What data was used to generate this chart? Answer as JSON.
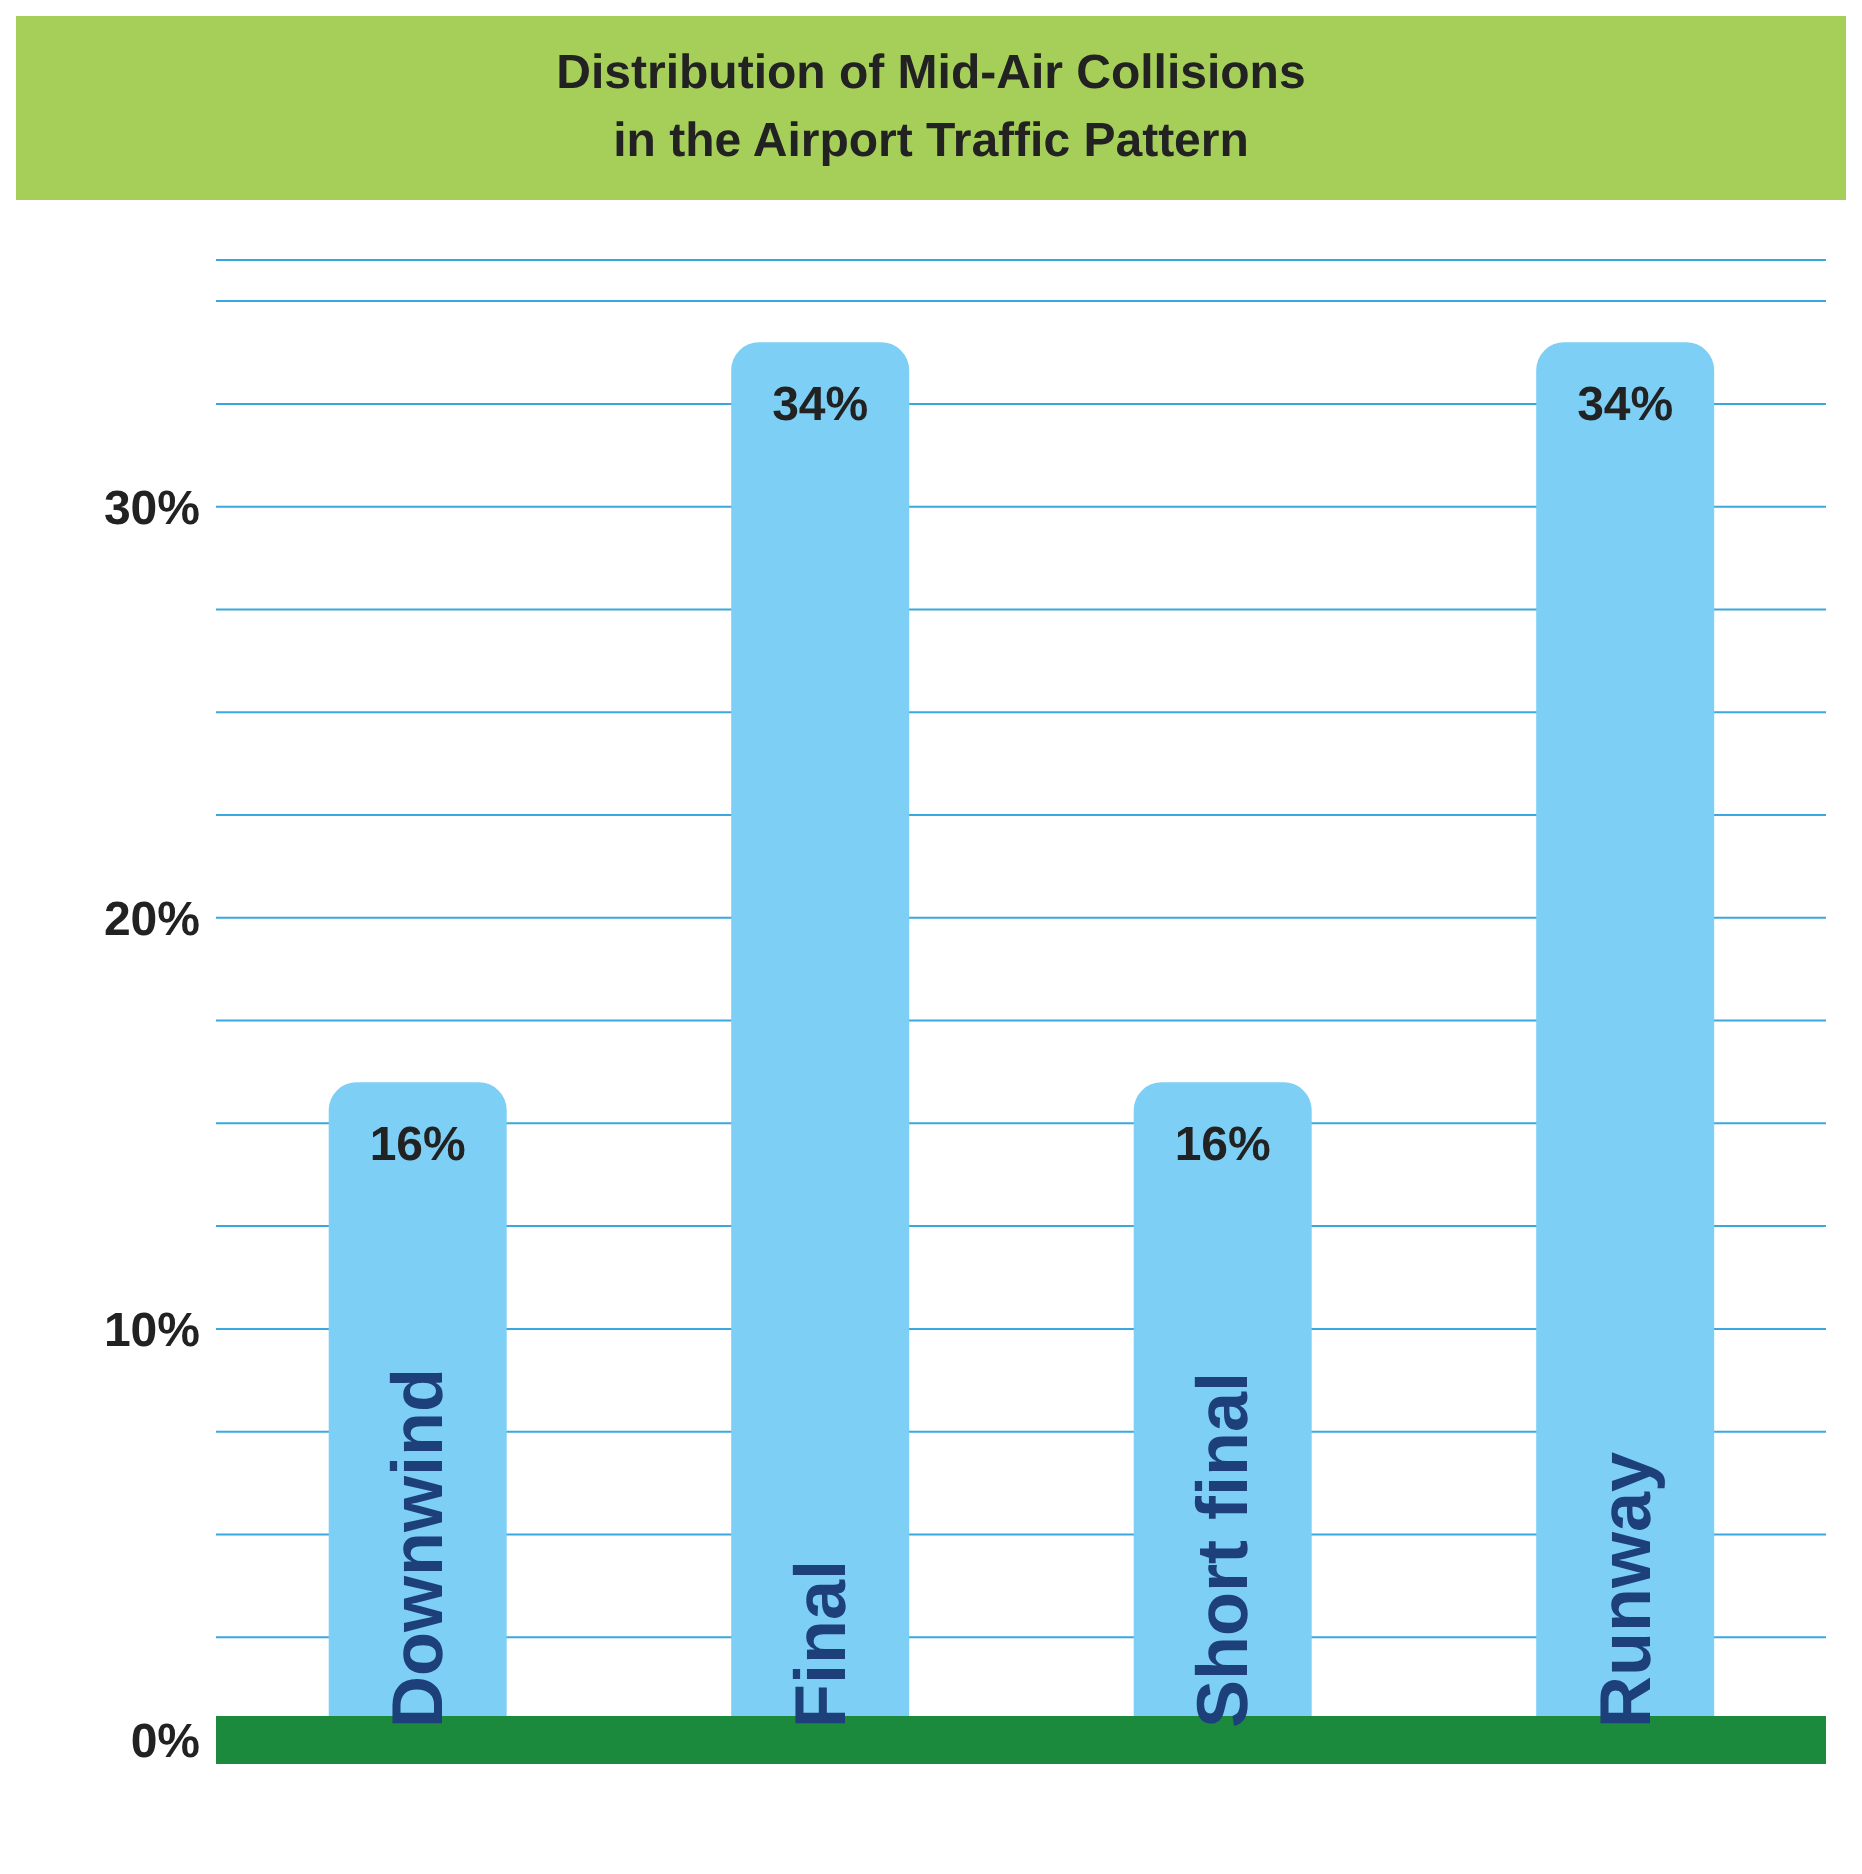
{
  "chart_data": {
    "type": "bar",
    "title": "Distribution of Mid-Air Collisions\nin the Airport Traffic Pattern",
    "categories": [
      "Downwind",
      "Final",
      "Short final",
      "Runway"
    ],
    "values": [
      16,
      34,
      16,
      34
    ],
    "color": "#7dcff5",
    "value_labels": [
      "16%",
      "34%",
      "16%",
      "34%"
    ],
    "ylim": [
      0,
      36
    ],
    "yticks": [
      {
        "value": 0,
        "label": "0%"
      },
      {
        "value": 2.5,
        "label": null
      },
      {
        "value": 5,
        "label": null
      },
      {
        "value": 7.5,
        "label": null
      },
      {
        "value": 10,
        "label": "10%"
      },
      {
        "value": 12.5,
        "label": null
      },
      {
        "value": 15,
        "label": null
      },
      {
        "value": 17.5,
        "label": null
      },
      {
        "value": 20,
        "label": "20%"
      },
      {
        "value": 22.5,
        "label": null
      },
      {
        "value": 25,
        "label": null
      },
      {
        "value": 27.5,
        "label": null
      },
      {
        "value": 30,
        "label": "30%"
      },
      {
        "value": 32.5,
        "label": null
      },
      {
        "value": 35,
        "label": null
      }
    ],
    "grid": "y"
  }
}
